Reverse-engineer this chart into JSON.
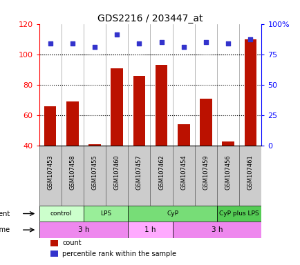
{
  "title": "GDS2216 / 203447_at",
  "samples": [
    "GSM107453",
    "GSM107458",
    "GSM107455",
    "GSM107460",
    "GSM107457",
    "GSM107462",
    "GSM107454",
    "GSM107459",
    "GSM107456",
    "GSM107461"
  ],
  "bar_values": [
    66,
    69,
    41,
    91,
    86,
    93,
    54,
    71,
    43,
    110
  ],
  "dot_values": [
    107,
    107,
    105,
    113,
    107,
    108,
    105,
    108,
    107,
    110
  ],
  "ylim_left": [
    40,
    120
  ],
  "ylim_right": [
    0,
    100
  ],
  "yticks_left": [
    40,
    60,
    80,
    100,
    120
  ],
  "yticks_right": [
    0,
    25,
    50,
    75,
    100
  ],
  "ytick_labels_right": [
    "0",
    "25",
    "50",
    "75",
    "100%"
  ],
  "bar_color": "#bb1100",
  "dot_color": "#3333cc",
  "agent_groups": [
    {
      "label": "control",
      "start": 0,
      "end": 2,
      "color": "#ccffcc"
    },
    {
      "label": "LPS",
      "start": 2,
      "end": 4,
      "color": "#99ee99"
    },
    {
      "label": "CyP",
      "start": 4,
      "end": 8,
      "color": "#77dd77"
    },
    {
      "label": "CyP plus LPS",
      "start": 8,
      "end": 10,
      "color": "#55cc55"
    }
  ],
  "time_groups": [
    {
      "label": "3 h",
      "start": 0,
      "end": 4,
      "color": "#ee88ee"
    },
    {
      "label": "1 h",
      "start": 4,
      "end": 6,
      "color": "#ffaaff"
    },
    {
      "label": "3 h",
      "start": 6,
      "end": 10,
      "color": "#ee88ee"
    }
  ],
  "legend_items": [
    {
      "label": "count",
      "color": "#bb1100",
      "marker": "s"
    },
    {
      "label": "percentile rank within the sample",
      "color": "#3333cc",
      "marker": "s"
    }
  ],
  "sample_box_color": "#cccccc",
  "background_color": "#ffffff",
  "bar_width": 0.55
}
